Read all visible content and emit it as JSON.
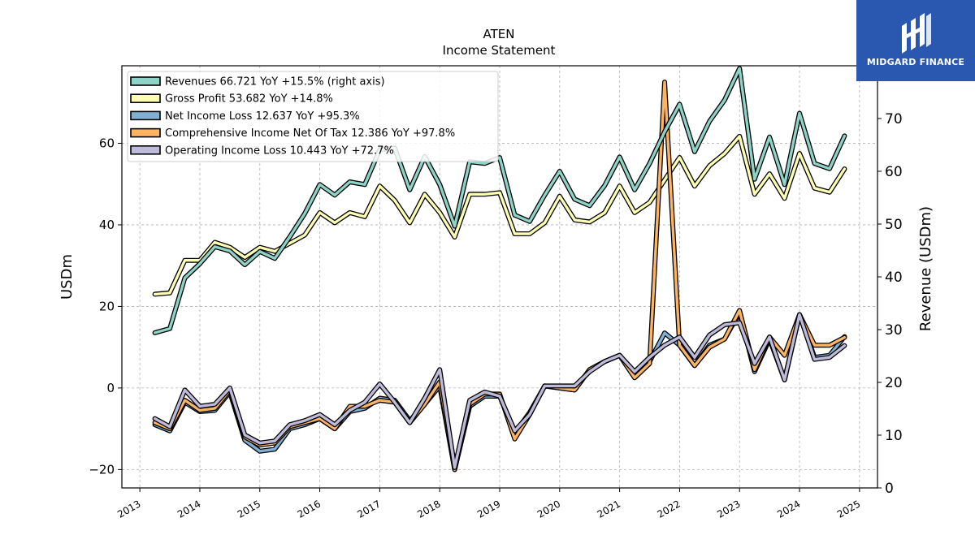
{
  "brand": {
    "name": "MIDGARD FINANCE",
    "background": "#2a58b0",
    "icon": "midgard-logo-icon"
  },
  "chart_data": {
    "type": "line",
    "title": "ATEN",
    "subtitle": "Income Statement",
    "ylabel_left": "USDm",
    "ylabel_right": "Revenue (USDm)",
    "xlim": [
      2012.7,
      2025.3
    ],
    "ylim_left": [
      -24.5,
      79
    ],
    "ylim_right": [
      0,
      80
    ],
    "yticks_left": [
      -20,
      0,
      20,
      40,
      60
    ],
    "yticks_left_labels": [
      "−20",
      "0",
      "20",
      "40",
      "60"
    ],
    "yticks_right": [
      0,
      10,
      20,
      30,
      40,
      50,
      60,
      70
    ],
    "xticks": [
      2013,
      2014,
      2015,
      2016,
      2017,
      2018,
      2019,
      2020,
      2021,
      2022,
      2023,
      2024,
      2025
    ],
    "grid": true,
    "legend_position": "top-left",
    "x": [
      2013.25,
      2013.5,
      2013.75,
      2014.0,
      2014.25,
      2014.5,
      2014.75,
      2015.0,
      2015.25,
      2015.5,
      2015.75,
      2016.0,
      2016.25,
      2016.5,
      2016.75,
      2017.0,
      2017.25,
      2017.5,
      2017.75,
      2018.0,
      2018.25,
      2018.5,
      2018.75,
      2019.0,
      2019.25,
      2019.5,
      2019.75,
      2020.0,
      2020.25,
      2020.5,
      2020.75,
      2021.0,
      2021.25,
      2021.5,
      2021.75,
      2022.0,
      2022.25,
      2022.5,
      2022.75,
      2023.0,
      2023.25,
      2023.5,
      2023.75,
      2024.0,
      2024.25,
      2024.5,
      2024.75
    ],
    "series": [
      {
        "name": "Revenues  66.721 YoY +15.5% (right axis)",
        "color": "#8dd3c7",
        "axis": "right",
        "values": [
          29.4,
          30.2,
          39.8,
          42.5,
          45.7,
          44.9,
          42.3,
          44.8,
          43.5,
          47.6,
          52.0,
          57.5,
          55.5,
          58.0,
          57.5,
          64.1,
          64.4,
          56.5,
          62.8,
          57.5,
          49.6,
          61.8,
          61.5,
          62.6,
          51.7,
          50.5,
          55.5,
          60.0,
          54.7,
          53.5,
          57.3,
          62.7,
          56.5,
          61.5,
          67.5,
          72.7,
          63.7,
          69.5,
          73.5,
          79.5,
          58.5,
          66.5,
          57.5,
          71.0,
          61.5,
          60.5,
          66.7
        ]
      },
      {
        "name": "Gross Profit  53.682 YoY +14.8%",
        "color": "#ffffb3",
        "axis": "left",
        "values": [
          23.0,
          23.3,
          31.3,
          31.3,
          35.7,
          34.5,
          32.0,
          34.5,
          33.5,
          35.5,
          37.5,
          43.0,
          40.5,
          43.0,
          42.0,
          49.5,
          46.0,
          40.5,
          47.5,
          43.0,
          37.0,
          47.5,
          47.5,
          47.9,
          37.8,
          37.8,
          40.5,
          47.0,
          41.2,
          40.7,
          43.0,
          49.5,
          43.0,
          45.5,
          51.0,
          56.5,
          49.5,
          54.5,
          57.5,
          61.7,
          47.5,
          52.5,
          46.5,
          57.5,
          49.0,
          48.0,
          53.7
        ]
      },
      {
        "name": "Net Income Loss  12.637 YoY +95.3%",
        "color": "#80b1d3",
        "axis": "left",
        "values": [
          -9.0,
          -10.5,
          -3.5,
          -5.8,
          -5.5,
          -1.0,
          -12.8,
          -15.5,
          -15.0,
          -10.0,
          -9.0,
          -7.5,
          -10.0,
          -5.8,
          -5.0,
          -2.5,
          -3.0,
          -8.0,
          -4.0,
          0.5,
          -20.0,
          -4.5,
          -2.0,
          -2.0,
          -11.0,
          -6.0,
          0.5,
          0.0,
          -0.5,
          4.5,
          6.5,
          8.0,
          3.0,
          6.5,
          13.5,
          10.5,
          5.5,
          10.5,
          12.0,
          18.5,
          4.0,
          12.0,
          2.0,
          18.0,
          7.5,
          8.0,
          12.6
        ]
      },
      {
        "name": "Comprehensive Income Net Of Tax  12.386 YoY +97.8%",
        "color": "#fdb462",
        "axis": "left",
        "values": [
          -8.5,
          -10.0,
          -3.0,
          -5.5,
          -5.0,
          -0.5,
          -12.0,
          -14.0,
          -13.5,
          -9.5,
          -8.5,
          -7.5,
          -10.0,
          -4.5,
          -4.5,
          -3.0,
          -3.5,
          -8.5,
          -4.0,
          1.5,
          -20.0,
          -4.0,
          -1.5,
          -1.5,
          -12.5,
          -6.5,
          0.5,
          0.0,
          -0.5,
          4.5,
          6.5,
          8.0,
          2.5,
          6.0,
          75.0,
          10.5,
          5.5,
          10.0,
          12.0,
          19.0,
          4.5,
          12.5,
          8.0,
          18.0,
          10.5,
          10.5,
          12.4
        ]
      },
      {
        "name": "Operating Income Loss  10.443 YoY +72.7%",
        "color": "#bebada",
        "axis": "left",
        "values": [
          -7.5,
          -9.5,
          -0.5,
          -4.5,
          -4.0,
          0.0,
          -11.5,
          -13.5,
          -13.0,
          -9.0,
          -8.0,
          -6.5,
          -9.0,
          -5.5,
          -3.5,
          1.0,
          -3.5,
          -8.5,
          -2.5,
          4.5,
          -19.5,
          -3.0,
          -1.0,
          -2.0,
          -10.5,
          -6.5,
          0.5,
          0.5,
          0.5,
          4.0,
          6.5,
          8.0,
          4.0,
          7.5,
          10.5,
          12.5,
          7.5,
          13.0,
          15.5,
          16.0,
          6.0,
          12.5,
          2.0,
          18.0,
          7.0,
          7.5,
          10.4
        ]
      }
    ]
  }
}
